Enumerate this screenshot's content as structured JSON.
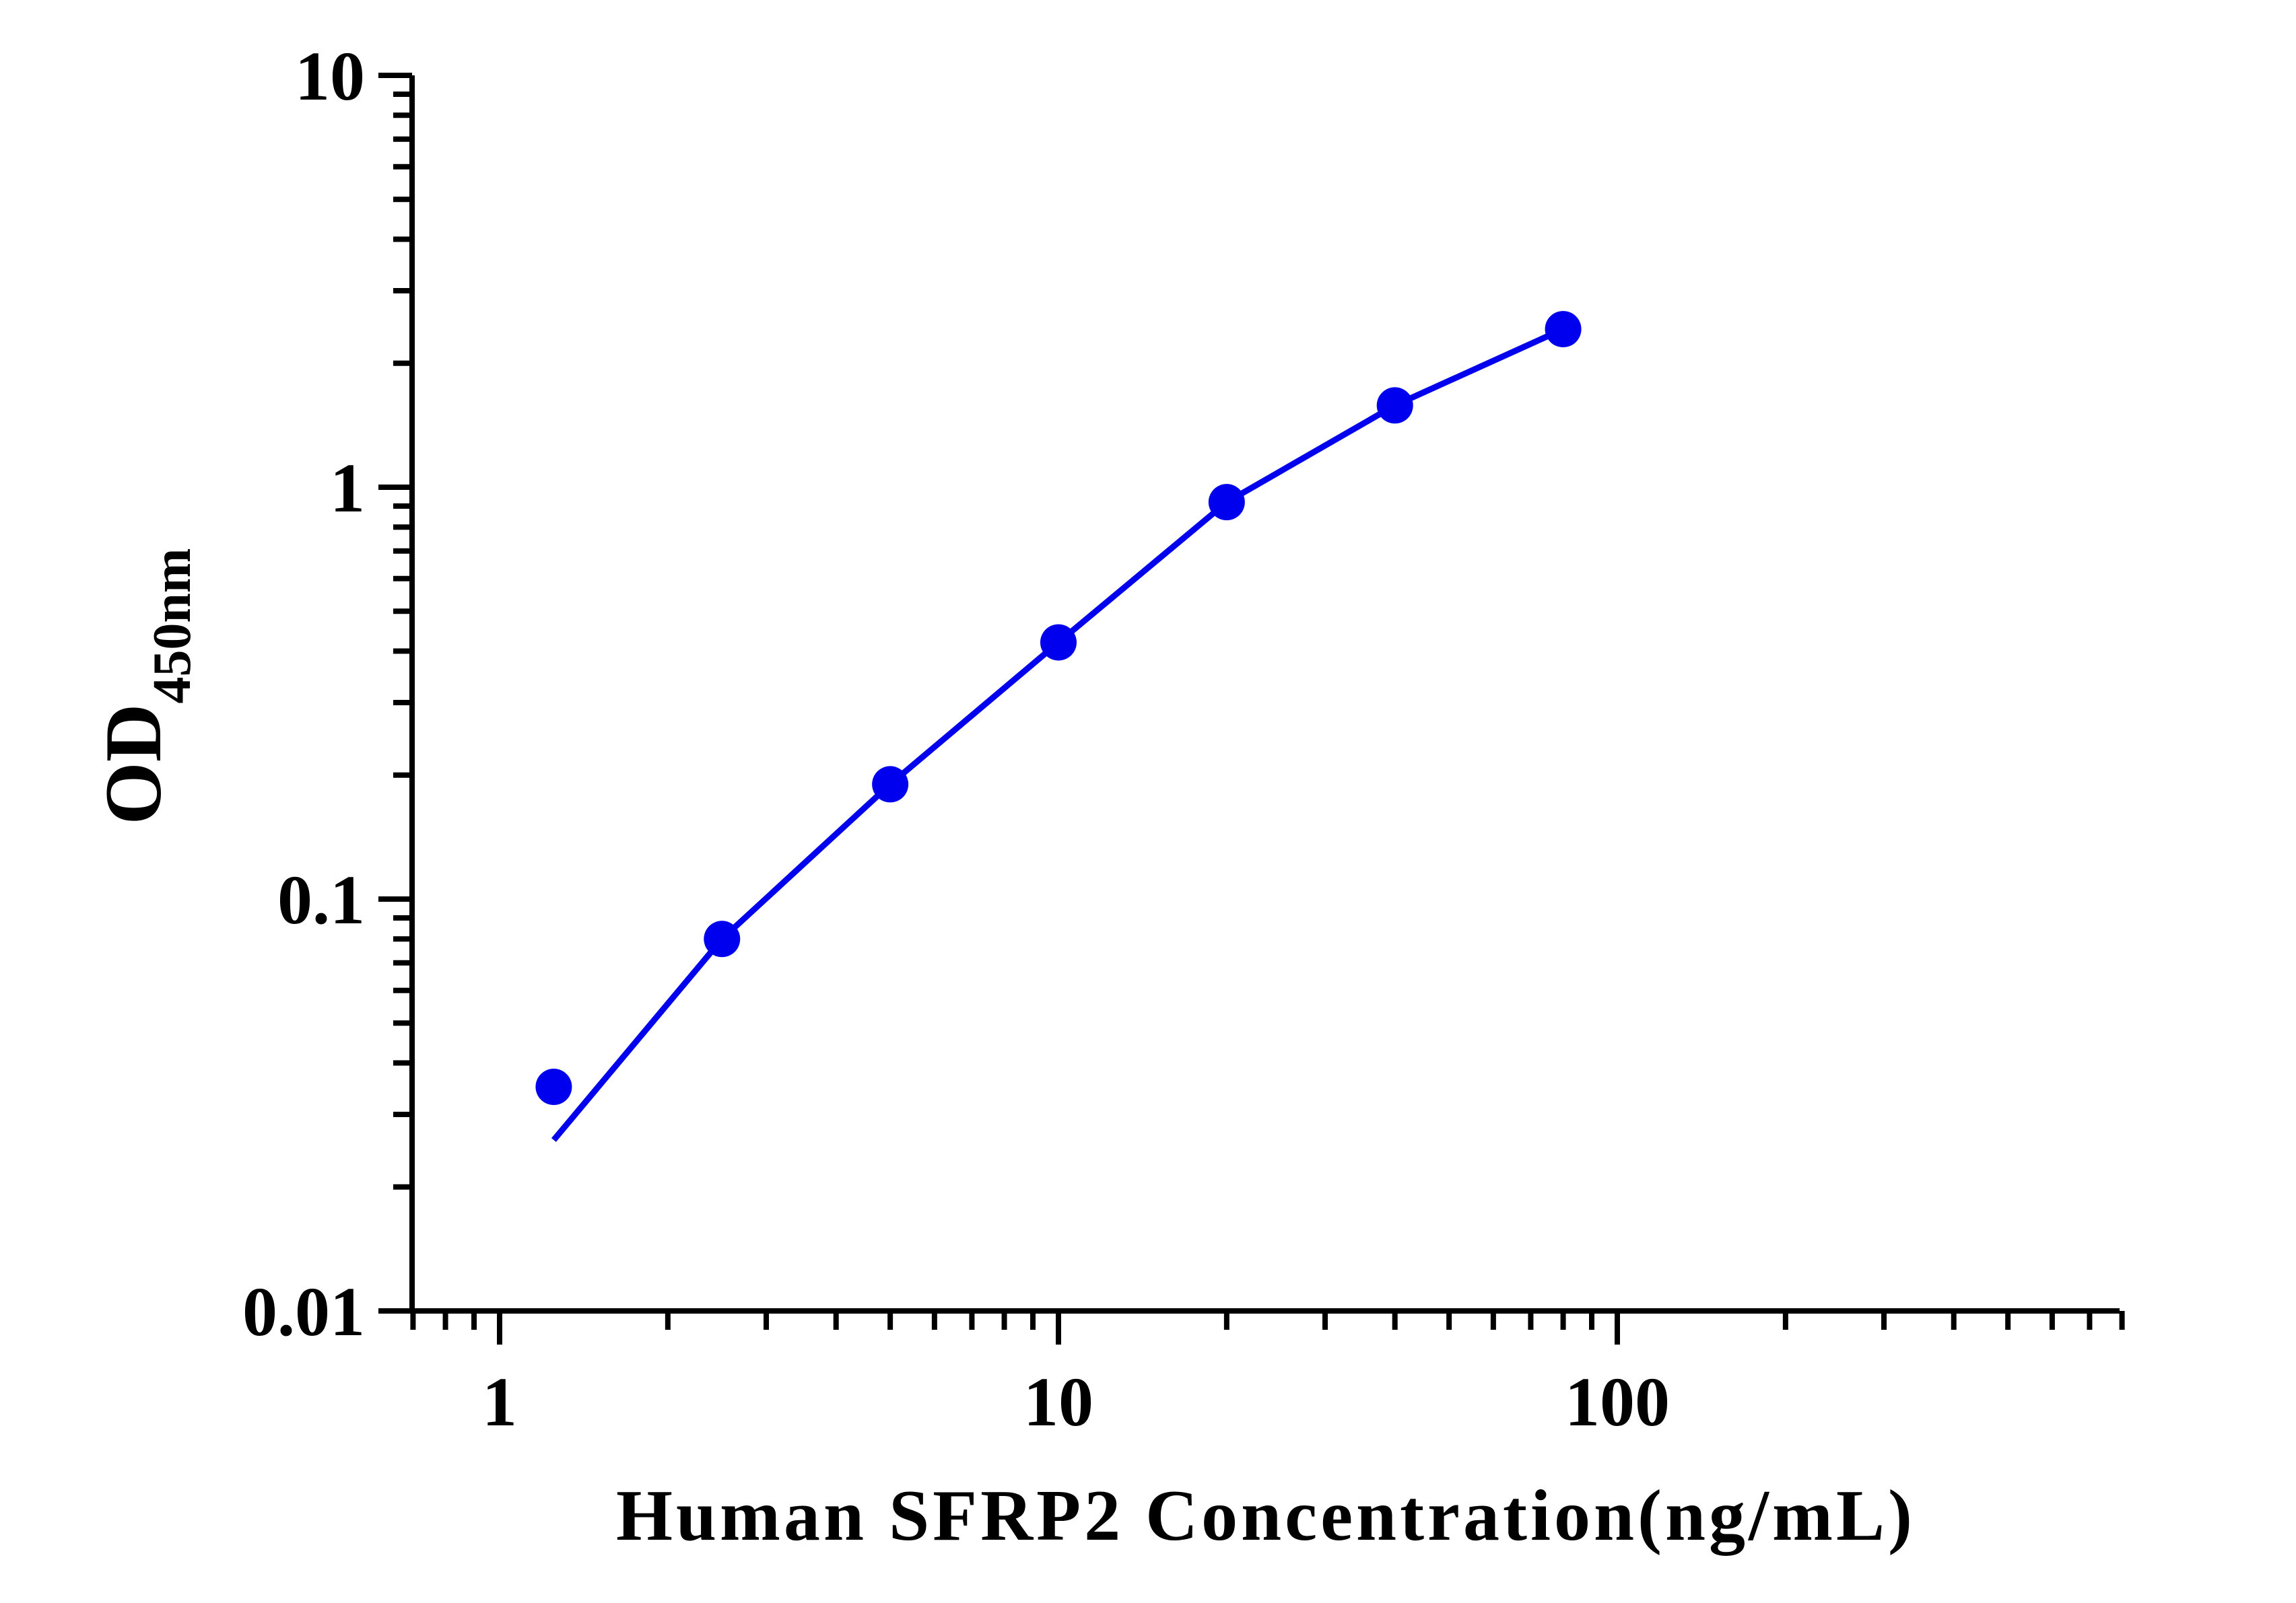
{
  "chart_data": {
    "type": "scatter",
    "title": "",
    "xlabel": "Human SFRP2 Concentration(ng/mL)",
    "ylabel_main": "OD",
    "ylabel_sub": "450nm",
    "xscale": "log",
    "yscale": "log",
    "xlim": [
      0.7,
      800
    ],
    "ylim": [
      0.01,
      10
    ],
    "x_tick_labels": [
      "1",
      "10",
      "100"
    ],
    "y_tick_labels": [
      "0.01",
      "0.1",
      "1",
      "10"
    ],
    "grid": false,
    "legend": "none",
    "series": [
      {
        "points": [
          {
            "x": 1.25,
            "y": 0.035
          },
          {
            "x": 2.5,
            "y": 0.08
          },
          {
            "x": 5,
            "y": 0.19
          },
          {
            "x": 10,
            "y": 0.42
          },
          {
            "x": 20,
            "y": 0.92
          },
          {
            "x": 40,
            "y": 1.58
          },
          {
            "x": 80,
            "y": 2.42
          }
        ],
        "fit_curve": [
          {
            "x": 1.25,
            "y": 0.026
          },
          {
            "x": 2.5,
            "y": 0.08
          },
          {
            "x": 5,
            "y": 0.19
          },
          {
            "x": 10,
            "y": 0.42
          },
          {
            "x": 20,
            "y": 0.92
          },
          {
            "x": 40,
            "y": 1.58
          },
          {
            "x": 80,
            "y": 2.42
          }
        ],
        "color": "#0000ee"
      }
    ]
  }
}
